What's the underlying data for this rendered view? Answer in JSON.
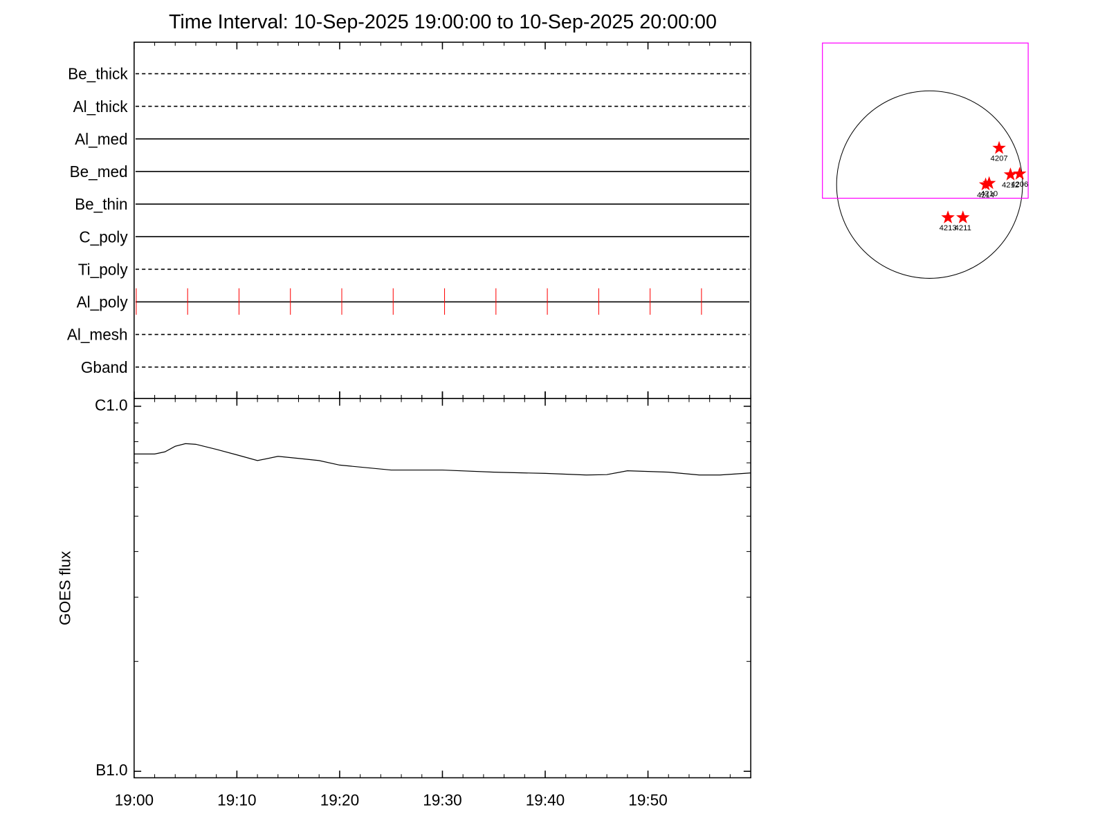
{
  "chart_data": [
    {
      "type": "timeline",
      "title": "Time Interval: 10-Sep-2025 19:00:00 to 10-Sep-2025 20:00:00",
      "xlim": [
        0,
        60
      ],
      "rows": [
        {
          "name": "Be_thick",
          "line": "dashed"
        },
        {
          "name": "Al_thick",
          "line": "dashed"
        },
        {
          "name": "Al_med",
          "line": "solid"
        },
        {
          "name": "Be_med",
          "line": "solid"
        },
        {
          "name": "Be_thin",
          "line": "solid"
        },
        {
          "name": "C_poly",
          "line": "solid"
        },
        {
          "name": "Ti_poly",
          "line": "dashed"
        },
        {
          "name": "Al_poly",
          "line": "solid"
        },
        {
          "name": "Al_mesh",
          "line": "dashed"
        },
        {
          "name": "Gband",
          "line": "dashed"
        }
      ],
      "marks": {
        "row": "Al_poly",
        "color": "#ff0000",
        "x": [
          0,
          5,
          10,
          15,
          20,
          25,
          30,
          35,
          40,
          45,
          50,
          55
        ]
      }
    },
    {
      "type": "line",
      "ylabel": "GOES flux",
      "xlim": [
        0,
        60
      ],
      "xticks": [
        {
          "value": 0,
          "label": "19:00"
        },
        {
          "value": 10,
          "label": "19:10"
        },
        {
          "value": 20,
          "label": "19:20"
        },
        {
          "value": 30,
          "label": "19:30"
        },
        {
          "value": 40,
          "label": "19:40"
        },
        {
          "value": 50,
          "label": "19:50"
        }
      ],
      "xminor_step": 2,
      "log": true,
      "ylim": [
        9.6e-07,
        1.05e-05
      ],
      "yticks": [
        {
          "value": 1e-06,
          "label": "B1.0"
        },
        {
          "value": 1e-05,
          "label": "C1.0"
        }
      ],
      "series": [
        {
          "color": "#000000",
          "x": [
            0,
            2,
            3,
            4,
            5,
            6,
            8,
            10,
            12,
            14,
            16,
            18,
            20,
            25,
            30,
            35,
            40,
            44,
            46,
            48,
            50,
            52,
            55,
            57,
            60
          ],
          "values": [
            7.4e-06,
            7.4e-06,
            7.5e-06,
            7.77e-06,
            7.9e-06,
            7.87e-06,
            7.62e-06,
            7.36e-06,
            7.1e-06,
            7.29e-06,
            7.2e-06,
            7.1e-06,
            6.9e-06,
            6.69e-06,
            6.69e-06,
            6.6e-06,
            6.55e-06,
            6.48e-06,
            6.5e-06,
            6.66e-06,
            6.63e-06,
            6.6e-06,
            6.48e-06,
            6.48e-06,
            6.57e-06
          ]
        }
      ]
    },
    {
      "type": "map",
      "disk_radius": 950,
      "fov": {
        "color": "#ff00ff",
        "xlim": [
          -1095,
          1008
        ],
        "ylim": [
          -138,
          1435
        ]
      },
      "stars": {
        "color": "#ff0000",
        "names": [
          "4207",
          "4212",
          "4206",
          "4210",
          "4214",
          "4213",
          "4211"
        ],
        "x": [
          711,
          827,
          921,
          609,
          573,
          188,
          341
        ],
        "y": [
          370,
          101,
          109,
          14,
          0,
          -334,
          -334
        ]
      }
    }
  ]
}
